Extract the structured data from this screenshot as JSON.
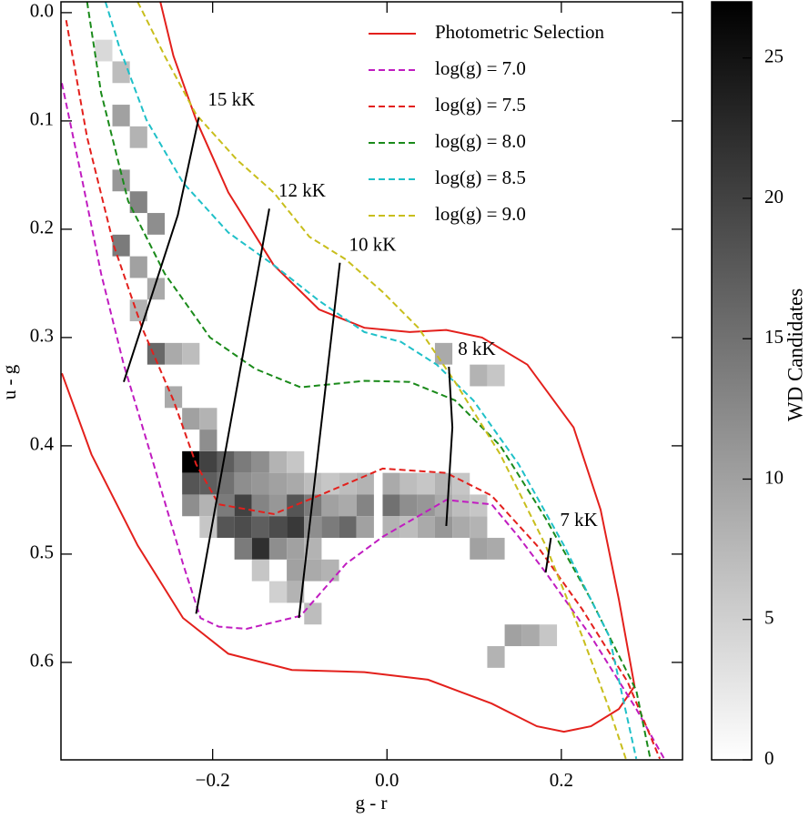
{
  "chart_data": {
    "type": "heatmap",
    "xlabel": "g - r",
    "ylabel": "u - g",
    "xlim": [
      -0.374,
      0.339
    ],
    "ylim": [
      0.69,
      -0.01
    ],
    "xticks": [
      {
        "value": -0.2,
        "label": "−0.2"
      },
      {
        "value": 0,
        "label": "0.0"
      },
      {
        "value": 0.2,
        "label": "0.2"
      }
    ],
    "yticks": [
      {
        "value": 0,
        "label": "0.0"
      },
      0.1,
      0.2,
      0.3,
      0.4,
      0.5,
      0.6
    ],
    "cmap": "Greys",
    "colorbar": {
      "label": "WD Candidates",
      "clim": [
        0,
        27
      ],
      "ticks": [
        0,
        5,
        10,
        15,
        20,
        25
      ]
    },
    "legend": "upper right",
    "cells": {
      "cell_size": [
        0.02,
        0.02
      ],
      "x": [
        -0.225,
        -0.205,
        -0.185,
        -0.165,
        -0.145,
        -0.125,
        -0.105,
        -0.225,
        -0.205,
        -0.185,
        -0.165,
        -0.145,
        -0.125,
        -0.105,
        -0.085,
        -0.065,
        -0.045,
        -0.025,
        0.005,
        0.025,
        0.045,
        0.065,
        0.085,
        -0.225,
        -0.205,
        -0.185,
        -0.165,
        -0.145,
        -0.125,
        -0.105,
        -0.085,
        -0.065,
        -0.045,
        -0.025,
        0.005,
        0.025,
        0.045,
        0.065,
        0.085,
        0.105,
        -0.205,
        -0.185,
        -0.165,
        -0.145,
        -0.125,
        -0.105,
        -0.085,
        -0.065,
        -0.045,
        -0.025,
        0.005,
        0.025,
        0.045,
        0.065,
        0.085,
        0.105,
        -0.165,
        -0.145,
        -0.125,
        -0.105,
        -0.085,
        0.105,
        0.125,
        -0.145,
        -0.105,
        -0.085,
        -0.065,
        -0.325,
        -0.305,
        -0.305,
        -0.285,
        -0.305,
        -0.285,
        -0.265,
        -0.305,
        -0.285,
        -0.265,
        -0.285,
        -0.265,
        -0.245,
        -0.225,
        -0.245,
        -0.225,
        -0.205,
        -0.205,
        0.105,
        0.125,
        0.065,
        0.145,
        0.165,
        0.125,
        0.185,
        -0.085,
        -0.105,
        -0.125
      ],
      "y": [
        0.415,
        0.415,
        0.415,
        0.415,
        0.415,
        0.415,
        0.415,
        0.435,
        0.435,
        0.435,
        0.435,
        0.435,
        0.435,
        0.435,
        0.435,
        0.435,
        0.435,
        0.435,
        0.435,
        0.435,
        0.435,
        0.435,
        0.435,
        0.455,
        0.455,
        0.455,
        0.455,
        0.455,
        0.455,
        0.455,
        0.455,
        0.455,
        0.455,
        0.455,
        0.455,
        0.455,
        0.455,
        0.455,
        0.455,
        0.455,
        0.475,
        0.475,
        0.475,
        0.475,
        0.475,
        0.475,
        0.475,
        0.475,
        0.475,
        0.475,
        0.475,
        0.475,
        0.475,
        0.475,
        0.475,
        0.475,
        0.495,
        0.495,
        0.495,
        0.495,
        0.495,
        0.495,
        0.495,
        0.515,
        0.515,
        0.515,
        0.515,
        0.035,
        0.055,
        0.095,
        0.115,
        0.155,
        0.175,
        0.195,
        0.215,
        0.235,
        0.255,
        0.275,
        0.315,
        0.315,
        0.315,
        0.355,
        0.375,
        0.395,
        0.375,
        0.335,
        0.335,
        0.315,
        0.575,
        0.575,
        0.595,
        0.575,
        0.555,
        0.535,
        0.535
      ],
      "values": [
        27,
        20,
        17,
        14,
        12,
        8,
        6,
        18,
        17,
        15,
        12,
        11,
        10,
        9,
        7,
        6,
        7,
        8,
        9,
        7,
        6,
        8,
        6,
        12,
        8,
        14,
        20,
        13,
        11,
        18,
        14,
        10,
        9,
        13,
        15,
        12,
        11,
        9,
        7,
        6,
        6,
        18,
        19,
        17,
        19,
        21,
        12,
        14,
        16,
        10,
        8,
        7,
        9,
        11,
        9,
        8,
        14,
        22,
        12,
        10,
        8,
        10,
        9,
        6,
        10,
        9,
        8,
        4,
        7,
        10,
        8,
        11,
        13,
        12,
        14,
        10,
        9,
        8,
        16,
        9,
        7,
        9,
        10,
        12,
        8,
        8,
        6,
        9,
        10,
        9,
        8,
        6,
        7,
        8,
        5
      ]
    },
    "series": [
      {
        "name": "Photometric Selection",
        "color": "#e3201c",
        "style": "solid",
        "x": [
          -0.26,
          -0.245,
          -0.219,
          -0.182,
          -0.13,
          -0.078,
          -0.026,
          0.026,
          0.068,
          0.109,
          0.161,
          0.214,
          0.245,
          0.266,
          0.284,
          0.266,
          0.234,
          0.203,
          0.172,
          0.12,
          0.047,
          -0.026,
          -0.109,
          -0.182,
          -0.234,
          -0.286,
          -0.339,
          -0.373
        ],
        "y": [
          -0.01,
          0.04,
          0.099,
          0.166,
          0.233,
          0.274,
          0.291,
          0.295,
          0.293,
          0.3,
          0.325,
          0.383,
          0.459,
          0.542,
          0.622,
          0.643,
          0.659,
          0.664,
          0.659,
          0.638,
          0.616,
          0.609,
          0.607,
          0.592,
          0.559,
          0.492,
          0.408,
          0.333
        ]
      },
      {
        "name": "log(g) = 7.0",
        "color": "#c01cc0",
        "style": "dashed",
        "x": [
          -0.373,
          -0.349,
          -0.328,
          -0.302,
          -0.271,
          -0.234,
          -0.214,
          -0.193,
          -0.161,
          -0.099,
          -0.047,
          -0.005,
          0.068,
          0.12,
          0.151,
          0.182,
          0.234,
          0.286,
          0.318
        ],
        "y": [
          0.065,
          0.157,
          0.241,
          0.325,
          0.408,
          0.509,
          0.559,
          0.567,
          0.569,
          0.557,
          0.509,
          0.484,
          0.45,
          0.454,
          0.484,
          0.517,
          0.576,
          0.643,
          0.689
        ]
      },
      {
        "name": "log(g) = 7.5",
        "color": "#e3201c",
        "style": "dashed",
        "x": [
          -0.368,
          -0.344,
          -0.313,
          -0.281,
          -0.245,
          -0.219,
          -0.193,
          -0.13,
          -0.078,
          -0.005,
          0.068,
          0.12,
          0.172,
          0.224,
          0.276,
          0.313
        ],
        "y": [
          0.007,
          0.115,
          0.216,
          0.291,
          0.358,
          0.417,
          0.454,
          0.463,
          0.446,
          0.421,
          0.425,
          0.446,
          0.492,
          0.551,
          0.618,
          0.689
        ]
      },
      {
        "name": "log(g) = 8.0",
        "color": "#1a8a1a",
        "style": "dashed",
        "x": [
          -0.344,
          -0.328,
          -0.297,
          -0.255,
          -0.203,
          -0.151,
          -0.099,
          -0.026,
          0.026,
          0.078,
          0.13,
          0.182,
          0.234,
          0.286,
          0.302
        ],
        "y": [
          -0.01,
          0.074,
          0.174,
          0.241,
          0.3,
          0.329,
          0.346,
          0.34,
          0.341,
          0.358,
          0.4,
          0.467,
          0.542,
          0.626,
          0.689
        ]
      },
      {
        "name": "log(g) = 8.5",
        "color": "#1fc0c8",
        "style": "dashed",
        "x": [
          -0.323,
          -0.307,
          -0.276,
          -0.234,
          -0.182,
          -0.13,
          -0.078,
          -0.026,
          0.016,
          0.057,
          0.099,
          0.151,
          0.203,
          0.255,
          0.286
        ],
        "y": [
          -0.01,
          0.032,
          0.099,
          0.157,
          0.203,
          0.233,
          0.266,
          0.295,
          0.304,
          0.325,
          0.358,
          0.417,
          0.492,
          0.576,
          0.689
        ]
      },
      {
        "name": "log(g) = 9.0",
        "color": "#c8be1c",
        "style": "dashed",
        "x": [
          -0.286,
          -0.255,
          -0.219,
          -0.172,
          -0.13,
          -0.089,
          -0.047,
          -0.005,
          0.036,
          0.078,
          0.13,
          0.182,
          0.224,
          0.255,
          0.274
        ],
        "y": [
          -0.01,
          0.04,
          0.094,
          0.136,
          0.166,
          0.207,
          0.228,
          0.258,
          0.291,
          0.341,
          0.408,
          0.492,
          0.576,
          0.643,
          0.689
        ]
      }
    ],
    "isotherms": [
      {
        "label": "15 kK",
        "color": "#000000",
        "x": [
          -0.216,
          -0.24,
          -0.302
        ],
        "y": [
          0.097,
          0.187,
          0.341
        ]
      },
      {
        "label": "12 kK",
        "color": "#000000",
        "x": [
          -0.135,
          -0.219
        ],
        "y": [
          0.181,
          0.555
        ]
      },
      {
        "label": "10 kK",
        "color": "#000000",
        "x": [
          -0.054,
          -0.101
        ],
        "y": [
          0.231,
          0.559
        ]
      },
      {
        "label": "8 kK",
        "color": "#000000",
        "x": [
          0.071,
          0.075,
          0.068
        ],
        "y": [
          0.327,
          0.383,
          0.474
        ]
      },
      {
        "label": "7 kK",
        "color": "#000000",
        "x": [
          0.188,
          0.182
        ],
        "y": [
          0.485,
          0.517
        ]
      }
    ]
  }
}
